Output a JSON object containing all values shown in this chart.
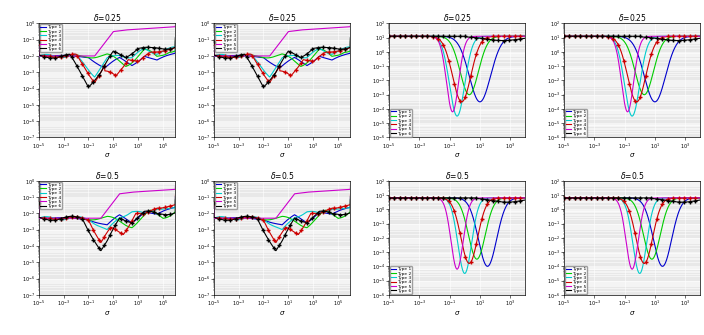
{
  "legend_labels": [
    "Type 1",
    "Type 2",
    "Type 3",
    "Type 4",
    "Type 5",
    "Type 6"
  ],
  "colors": [
    "#0000CC",
    "#00CC00",
    "#00CCCC",
    "#CC0000",
    "#CC00CC",
    "#000000"
  ],
  "titles_row1": [
    "δ=0.25",
    "δ=0.25",
    "δ=0.25",
    "δ=0.25"
  ],
  "titles_row2": [
    "δ=0.5",
    "δ=0.5",
    "δ=0.5",
    "δ=0.5"
  ],
  "background_color": "#e8e8e8",
  "grid_color": "#ffffff"
}
